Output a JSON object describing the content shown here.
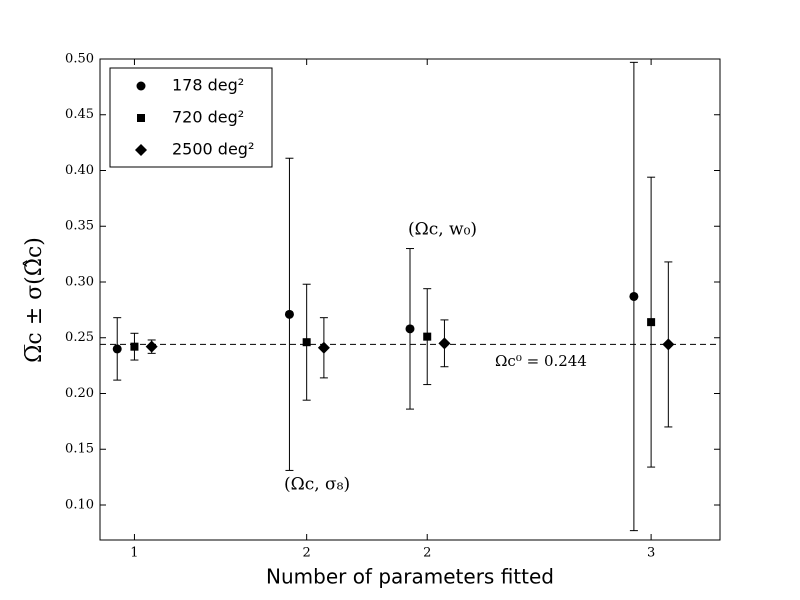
{
  "chart_data": {
    "type": "scatter",
    "x_label": "Number of parameters fitted",
    "y_label": "Ω̅c ± σ(Ω̂c)",
    "xlim": [
      0.8,
      4.4
    ],
    "xticks": [
      {
        "value": 1,
        "label": "1"
      },
      {
        "value": 2,
        "label": "2"
      },
      {
        "value": 2.7,
        "label": "2"
      },
      {
        "value": 4,
        "label": "3"
      }
    ],
    "ylim": [
      0.0686,
      0.5
    ],
    "yticks": [
      {
        "value": 0.1,
        "label": "0.10"
      },
      0.15,
      {
        "value": 0.2,
        "label": "0.20"
      },
      0.25,
      {
        "value": 0.3,
        "label": "0.30"
      },
      0.35,
      {
        "value": 0.4,
        "label": "0.40"
      },
      0.45,
      {
        "value": 0.5,
        "label": "0.50"
      }
    ],
    "grid": false,
    "legend": "upper left",
    "reference_line": {
      "value": 0.244,
      "label": "Ωc⁰ = 0.244"
    },
    "annotations": [
      "(Ωc, σ₈)",
      "(Ωc, w₀)"
    ],
    "series": [
      {
        "name": "178 deg²",
        "color": "#000000",
        "marker": "circle",
        "x": [
          0.9,
          1.9,
          2.6,
          3.9
        ],
        "values": [
          0.24,
          0.271,
          0.258,
          0.287
        ],
        "errors": [
          0.028,
          0.14,
          0.072,
          0.21
        ]
      },
      {
        "name": "720 deg²",
        "color": "#000000",
        "marker": "square",
        "x": [
          1.0,
          2.0,
          2.7,
          4.0
        ],
        "values": [
          0.242,
          0.246,
          0.251,
          0.264
        ],
        "errors": [
          0.012,
          0.052,
          0.043,
          0.13
        ]
      },
      {
        "name": "2500 deg²",
        "color": "#000000",
        "marker": "diamond",
        "x": [
          1.1,
          2.1,
          2.8,
          4.1
        ],
        "values": [
          0.242,
          0.241,
          0.245,
          0.244
        ],
        "errors": [
          0.006,
          0.027,
          0.021,
          0.074
        ]
      }
    ]
  }
}
